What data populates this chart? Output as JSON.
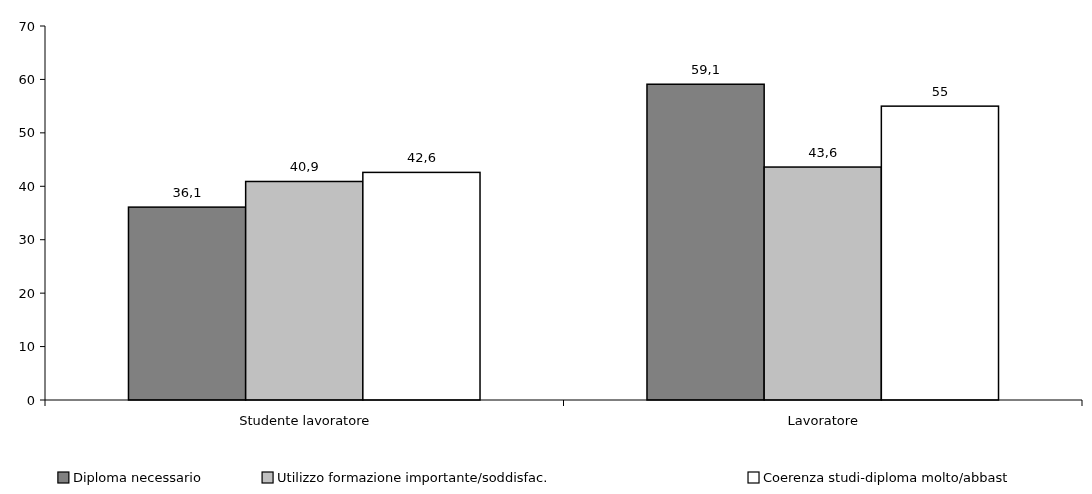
{
  "chart_data": {
    "type": "bar",
    "categories": [
      "Studente lavoratore",
      "Lavoratore"
    ],
    "series": [
      {
        "name": "Diploma necessario",
        "color": "#808080",
        "values": [
          36.1,
          59.1
        ],
        "value_labels": [
          "36,1",
          "59,1"
        ]
      },
      {
        "name": "Utilizzo formazione importante/soddisfac.",
        "color": "#c0c0c0",
        "values": [
          40.9,
          43.6
        ],
        "value_labels": [
          "40,9",
          "43,6"
        ]
      },
      {
        "name": "Coerenza studi-diploma molto/abbast",
        "color": "#ffffff",
        "values": [
          42.6,
          55
        ],
        "value_labels": [
          "42,6",
          "55"
        ]
      }
    ],
    "ylim": [
      0,
      70
    ],
    "yticks": [
      0,
      10,
      20,
      30,
      40,
      50,
      60,
      70
    ],
    "grid": false,
    "legend": "bottom"
  }
}
